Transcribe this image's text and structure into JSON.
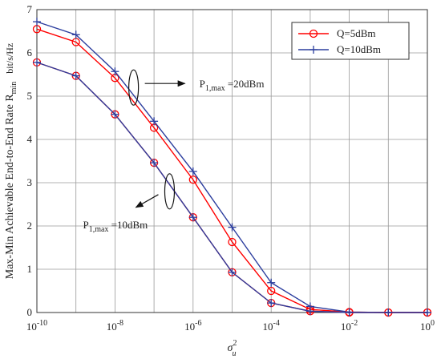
{
  "chart_data": {
    "type": "line",
    "x_scale": "log",
    "xlim": [
      1e-10,
      1
    ],
    "ylim": [
      0,
      7
    ],
    "x": [
      1e-10,
      1e-09,
      1e-08,
      1e-07,
      1e-06,
      1e-05,
      0.0001,
      0.001,
      0.01,
      0.1,
      1
    ],
    "x_ticks": [
      {
        "base": "10",
        "exp": "-10"
      },
      {
        "base": "10",
        "exp": "-8"
      },
      {
        "base": "10",
        "exp": "-6"
      },
      {
        "base": "10",
        "exp": "-4"
      },
      {
        "base": "10",
        "exp": "-2"
      },
      {
        "base": "10",
        "exp": "0"
      }
    ],
    "x_tick_values": [
      1e-10,
      1e-08,
      1e-06,
      0.0001,
      0.01,
      1
    ],
    "y_ticks": [
      "0",
      "1",
      "2",
      "3",
      "4",
      "5",
      "6",
      "7"
    ],
    "y_tick_values": [
      0,
      1,
      2,
      3,
      4,
      5,
      6,
      7
    ],
    "xlabel": {
      "main": "σ",
      "sup": "2",
      "sub": "u"
    },
    "ylabel": {
      "main": "Max-Min Achievable End-to-End Rate R",
      "sub": "min",
      "unit": "bit/s/Hz"
    },
    "grid": true,
    "legend_position": "top-right",
    "series": [
      {
        "name": "Q=5dBm",
        "group": "P1max=20dBm",
        "color": "#ff0000",
        "marker": "circle",
        "values": [
          6.55,
          6.25,
          5.42,
          4.27,
          3.07,
          1.63,
          0.5,
          0.07,
          0.01,
          0.0,
          0.0
        ]
      },
      {
        "name": "Q=10dBm",
        "group": "P1max=20dBm",
        "color": "#2c3e9e",
        "marker": "plus",
        "values": [
          6.72,
          6.42,
          5.57,
          4.42,
          3.26,
          1.97,
          0.69,
          0.14,
          0.01,
          0.0,
          0.0
        ]
      },
      {
        "name": "Q=5dBm",
        "group": "P1max=10dBm",
        "color": "#ff0000",
        "marker": "circle",
        "values": [
          5.78,
          5.47,
          4.58,
          3.46,
          2.2,
          0.93,
          0.22,
          0.03,
          0.0,
          0.0,
          0.0
        ]
      },
      {
        "name": "Q=10dBm",
        "group": "P1max=10dBm",
        "color": "#2c3e9e",
        "marker": "plus",
        "values": [
          5.78,
          5.47,
          4.58,
          3.46,
          2.2,
          0.93,
          0.22,
          0.03,
          0.0,
          0.0,
          0.0
        ]
      }
    ],
    "legend": [
      {
        "label": "Q=5dBm",
        "color": "#ff0000",
        "marker": "circle"
      },
      {
        "label": "Q=10dBm",
        "color": "#2c3e9e",
        "marker": "plus"
      }
    ],
    "annotations": [
      {
        "id": "p20",
        "label": {
          "main": "P",
          "sub": "1,max",
          "rest": " =20dBm"
        },
        "x": 3e-08,
        "y": 5.2,
        "arrow": "right"
      },
      {
        "id": "p10",
        "label": {
          "main": "P",
          "sub": "1,max",
          "rest": " =10dBm"
        },
        "x": 2.5e-07,
        "y": 2.8,
        "arrow": "down-left"
      }
    ]
  }
}
